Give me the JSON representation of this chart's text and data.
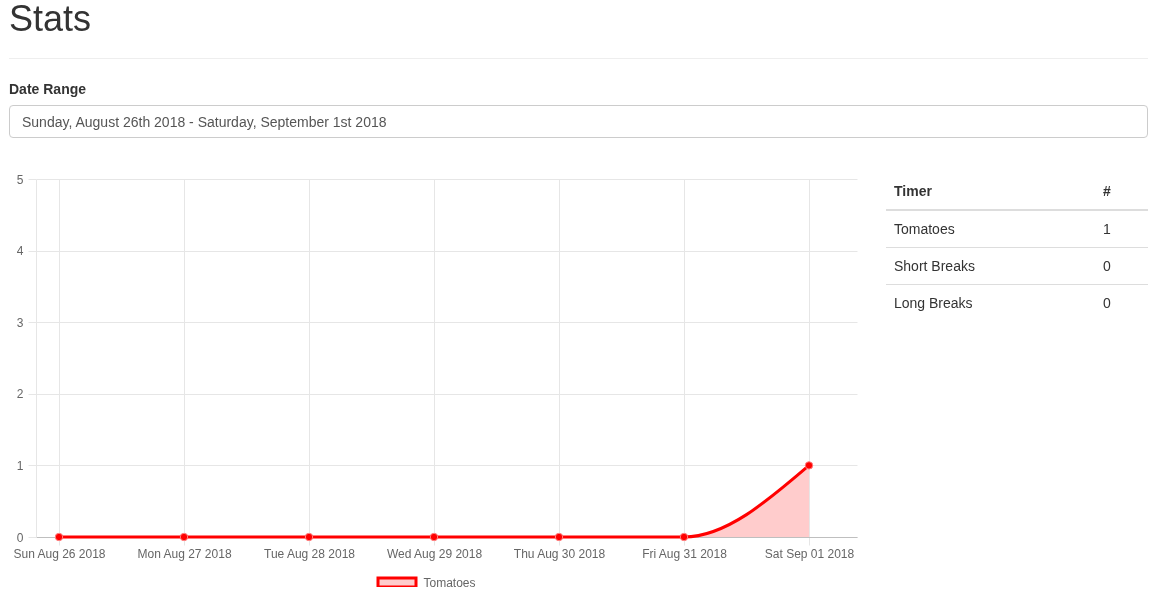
{
  "chart_data": [
    {
      "type": "area",
      "title": "Stats",
      "annotations": [
        "Date Range",
        "Sunday, August 26th 2018 - Saturday, September 1st 2018"
      ],
      "categories": [
        "Sun Aug 26 2018",
        "Mon Aug 27 2018",
        "Tue Aug 28 2018",
        "Wed Aug 29 2018",
        "Thu Aug 30 2018",
        "Fri Aug 31 2018",
        "Sat Sep 01 2018"
      ],
      "series": [
        {
          "name": "Tomatoes",
          "color": "#ff0000",
          "values": [
            0,
            0,
            0,
            0,
            0,
            0,
            1
          ]
        }
      ],
      "ylim": [
        0,
        5
      ],
      "yticks": [
        0,
        1,
        2,
        3,
        4,
        5
      ],
      "grid": true,
      "legend": "bottom",
      "marker": "circle",
      "line_style": "solid"
    },
    {
      "type": "other",
      "annotations": [
        "Timer",
        "#",
        "Tomatoes",
        "1",
        "Short Breaks",
        "0",
        "Long Breaks",
        "0"
      ]
    }
  ]
}
